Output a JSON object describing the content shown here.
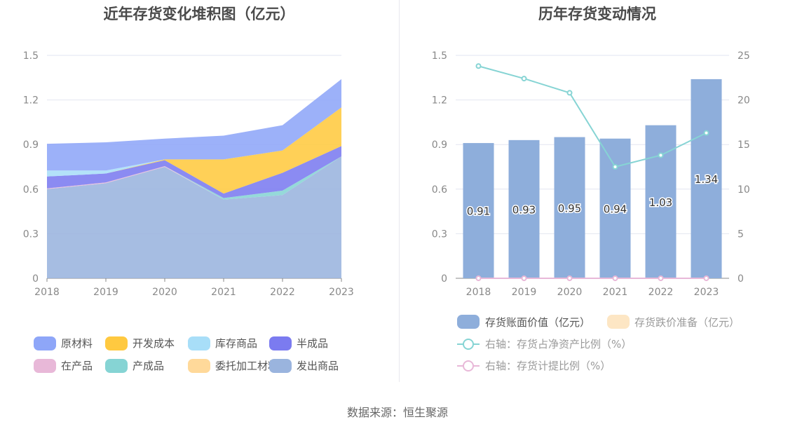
{
  "source": "数据来源：恒生聚源",
  "chart_data": [
    {
      "type": "area",
      "stacked": true,
      "title": "近年存货变化堆积图（亿元）",
      "categories": [
        "2018",
        "2019",
        "2020",
        "2021",
        "2022",
        "2023"
      ],
      "ylim": [
        0,
        1.5
      ],
      "yticks": [
        "0",
        "0.3",
        "0.6",
        "0.9",
        "1.2",
        "1.5"
      ],
      "grid": true,
      "legend_position": "bottom",
      "series": [
        {
          "name": "发出商品",
          "color": "#9ab4de",
          "values": [
            0.6,
            0.64,
            0.75,
            0.53,
            0.56,
            0.82
          ]
        },
        {
          "name": "在产品",
          "color": "#e8b8d8",
          "values": [
            0.005,
            0.005,
            0.005,
            0.0,
            0.0,
            0.0
          ]
        },
        {
          "name": "产成品",
          "color": "#86d4d4",
          "values": [
            0.0,
            0.0,
            0.0,
            0.01,
            0.03,
            0.0
          ]
        },
        {
          "name": "半成品",
          "color": "#7b7bf0",
          "values": [
            0.08,
            0.06,
            0.04,
            0.03,
            0.12,
            0.07
          ]
        },
        {
          "name": "委托加工材料",
          "color": "#ffd99a",
          "values": [
            0.0,
            0.0,
            0.0,
            0.0,
            0.0,
            0.0
          ]
        },
        {
          "name": "开发成本",
          "color": "#ffc940",
          "values": [
            0.0,
            0.0,
            0.005,
            0.23,
            0.15,
            0.26
          ]
        },
        {
          "name": "库存商品",
          "color": "#a8def8",
          "values": [
            0.04,
            0.02,
            0.0,
            0.0,
            0.0,
            0.0
          ]
        },
        {
          "name": "原材料",
          "color": "#8ea6f8",
          "values": [
            0.18,
            0.19,
            0.14,
            0.16,
            0.17,
            0.19
          ]
        }
      ],
      "legend_order": [
        "原材料",
        "开发成本",
        "库存商品",
        "半成品",
        "在产品",
        "产成品",
        "委托加工材料",
        "发出商品"
      ]
    },
    {
      "type": "bar",
      "title": "历年存货变动情况",
      "categories": [
        "2018",
        "2019",
        "2020",
        "2021",
        "2022",
        "2023"
      ],
      "ylim": [
        0,
        1.5
      ],
      "yticks": [
        "0",
        "0.3",
        "0.6",
        "0.9",
        "1.2",
        "1.5"
      ],
      "y2lim": [
        0,
        25
      ],
      "y2ticks": [
        "0",
        "5",
        "10",
        "15",
        "20",
        "25"
      ],
      "grid": true,
      "legend_position": "bottom",
      "series": [
        {
          "name": "存货账面价值（亿元）",
          "type": "bar",
          "axis": "left",
          "color": "#8eaedb",
          "values": [
            0.91,
            0.93,
            0.95,
            0.94,
            1.03,
            1.34
          ],
          "labels": [
            "0.91",
            "0.93",
            "0.95",
            "0.94",
            "1.03",
            "1.34"
          ]
        },
        {
          "name": "存货跌价准备（亿元）",
          "type": "bar",
          "axis": "left",
          "color": "#fde6c4",
          "values": [
            0,
            0,
            0,
            0,
            0,
            0
          ]
        },
        {
          "name": "右轴：存货占净资产比例（%）",
          "type": "line",
          "axis": "right",
          "color": "#86d4d4",
          "values": [
            23.8,
            22.4,
            20.8,
            12.5,
            13.8,
            16.3
          ]
        },
        {
          "name": "右轴：存货计提比例（%）",
          "type": "line",
          "axis": "right",
          "color": "#e8b8d8",
          "values": [
            0,
            0,
            0,
            0,
            0,
            0
          ]
        }
      ]
    }
  ]
}
